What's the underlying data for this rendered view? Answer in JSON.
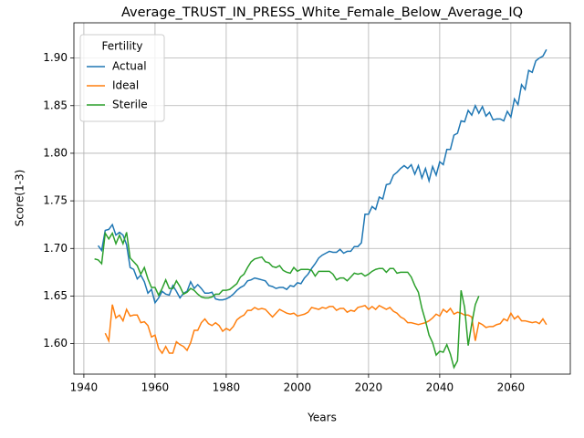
{
  "chart_data": {
    "type": "line",
    "title": "Average_TRUST_IN_PRESS_White_Female_Below_Average_IQ",
    "x_label": "Years",
    "y_label": "Score(1-3)",
    "legend_title": "Fertility",
    "legend_loc": "upper left",
    "grid": true,
    "xlim": [
      1937.2,
      2076.7
    ],
    "ylim": [
      1.568,
      1.937
    ],
    "xticks": [
      1940,
      1960,
      1980,
      2000,
      2020,
      2040,
      2060
    ],
    "yticks": [
      {
        "value": 1.6,
        "label": "1.60"
      },
      1.65,
      {
        "value": 1.7,
        "label": "1.70"
      },
      1.75,
      {
        "value": 1.8,
        "label": "1.80"
      },
      1.85,
      {
        "value": 1.9,
        "label": "1.90"
      }
    ],
    "x": [
      1943,
      1944,
      1945,
      1946,
      1947,
      1948,
      1949,
      1950,
      1951,
      1952,
      1953,
      1954,
      1955,
      1956,
      1957,
      1958,
      1959,
      1960,
      1961,
      1962,
      1963,
      1964,
      1965,
      1966,
      1967,
      1968,
      1969,
      1970,
      1971,
      1972,
      1973,
      1974,
      1975,
      1976,
      1977,
      1978,
      1979,
      1980,
      1981,
      1982,
      1983,
      1984,
      1985,
      1986,
      1987,
      1988,
      1989,
      1990,
      1991,
      1992,
      1993,
      1994,
      1995,
      1996,
      1997,
      1998,
      1999,
      2000,
      2001,
      2002,
      2003,
      2004,
      2005,
      2006,
      2007,
      2008,
      2009,
      2010,
      2011,
      2012,
      2013,
      2014,
      2015,
      2016,
      2017,
      2018,
      2019,
      2020,
      2021,
      2022,
      2023,
      2024,
      2025,
      2026,
      2027,
      2028,
      2029,
      2030,
      2031,
      2032,
      2033,
      2034,
      2035,
      2036,
      2037,
      2038,
      2039,
      2040,
      2041,
      2042,
      2043,
      2044,
      2045,
      2046,
      2047,
      2048,
      2049,
      2050,
      2051,
      2052,
      2053,
      2054,
      2055,
      2056,
      2057,
      2058,
      2059,
      2060,
      2061,
      2062,
      2063,
      2064,
      2065,
      2066,
      2067,
      2068,
      2069,
      2070
    ],
    "series": [
      {
        "name": "Actual",
        "color": "#1f77b4",
        "values": [
          null,
          1.703,
          1.698,
          1.719,
          1.72,
          1.725,
          1.714,
          1.717,
          1.714,
          1.704,
          1.68,
          1.678,
          1.668,
          1.672,
          1.665,
          1.653,
          1.657,
          1.643,
          1.648,
          1.655,
          1.652,
          1.651,
          1.661,
          1.655,
          1.648,
          1.653,
          1.655,
          1.665,
          1.658,
          1.662,
          1.658,
          1.653,
          1.653,
          1.654,
          1.647,
          1.646,
          1.646,
          1.647,
          1.649,
          1.652,
          1.656,
          1.659,
          1.661,
          1.666,
          1.667,
          1.669,
          1.668,
          1.667,
          1.666,
          1.661,
          1.66,
          1.658,
          1.659,
          1.659,
          1.657,
          1.661,
          1.66,
          1.664,
          1.663,
          1.669,
          1.673,
          1.679,
          1.684,
          1.69,
          1.693,
          1.695,
          1.697,
          1.696,
          1.696,
          1.699,
          1.695,
          1.697,
          1.697,
          1.702,
          1.702,
          1.706,
          1.736,
          1.736,
          1.744,
          1.741,
          1.754,
          1.752,
          1.767,
          1.768,
          1.777,
          1.78,
          1.784,
          1.787,
          1.784,
          1.788,
          1.778,
          1.787,
          1.774,
          1.784,
          1.771,
          1.786,
          1.777,
          1.791,
          1.788,
          1.804,
          1.804,
          1.819,
          1.821,
          1.834,
          1.833,
          1.845,
          1.84,
          1.85,
          1.842,
          1.849,
          1.839,
          1.843,
          1.835,
          1.836,
          1.836,
          1.834,
          1.844,
          1.838,
          1.857,
          1.851,
          1.872,
          1.867,
          1.887,
          1.885,
          1.897,
          1.9,
          1.902,
          1.909
        ]
      },
      {
        "name": "Ideal",
        "color": "#ff7f0e",
        "values": [
          null,
          null,
          null,
          1.611,
          1.603,
          1.641,
          1.627,
          1.63,
          1.624,
          1.636,
          1.629,
          1.63,
          1.63,
          1.622,
          1.623,
          1.619,
          1.607,
          1.609,
          1.595,
          1.59,
          1.597,
          1.59,
          1.59,
          1.602,
          1.599,
          1.597,
          1.593,
          1.601,
          1.614,
          1.614,
          1.622,
          1.626,
          1.621,
          1.619,
          1.622,
          1.619,
          1.613,
          1.616,
          1.614,
          1.618,
          1.625,
          1.628,
          1.63,
          1.635,
          1.635,
          1.638,
          1.636,
          1.637,
          1.636,
          1.632,
          1.628,
          1.632,
          1.636,
          1.634,
          1.632,
          1.631,
          1.632,
          1.629,
          1.63,
          1.631,
          1.633,
          1.638,
          1.637,
          1.636,
          1.638,
          1.637,
          1.639,
          1.639,
          1.635,
          1.637,
          1.637,
          1.633,
          1.635,
          1.634,
          1.638,
          1.639,
          1.64,
          1.636,
          1.639,
          1.636,
          1.64,
          1.638,
          1.636,
          1.638,
          1.634,
          1.632,
          1.628,
          1.626,
          1.622,
          1.622,
          1.621,
          1.62,
          1.621,
          1.622,
          1.624,
          1.627,
          1.631,
          1.629,
          1.636,
          1.633,
          1.637,
          1.631,
          1.633,
          1.632,
          1.63,
          1.63,
          1.628,
          1.603,
          1.622,
          1.62,
          1.617,
          1.618,
          1.618,
          1.62,
          1.621,
          1.626,
          1.624,
          1.632,
          1.626,
          1.629,
          1.624,
          1.624,
          1.623,
          1.622,
          1.623,
          1.621,
          1.626,
          1.62
        ]
      },
      {
        "name": "Sterile",
        "color": "#2ca02c",
        "values": [
          1.689,
          1.688,
          1.684,
          1.716,
          1.71,
          1.716,
          1.705,
          1.714,
          1.705,
          1.717,
          1.69,
          1.686,
          1.682,
          1.673,
          1.68,
          1.668,
          1.659,
          1.659,
          1.651,
          1.658,
          1.667,
          1.658,
          1.658,
          1.666,
          1.66,
          1.652,
          1.654,
          1.658,
          1.656,
          1.652,
          1.649,
          1.648,
          1.648,
          1.649,
          1.652,
          1.652,
          1.656,
          1.656,
          1.657,
          1.66,
          1.663,
          1.67,
          1.673,
          1.68,
          1.686,
          1.689,
          1.69,
          1.691,
          1.686,
          1.685,
          1.681,
          1.68,
          1.682,
          1.677,
          1.675,
          1.674,
          1.68,
          1.676,
          1.678,
          1.678,
          1.678,
          1.677,
          1.671,
          1.676,
          1.676,
          1.676,
          1.676,
          1.673,
          1.667,
          1.669,
          1.669,
          1.666,
          1.67,
          1.674,
          1.673,
          1.674,
          1.671,
          1.673,
          1.676,
          1.678,
          1.679,
          1.679,
          1.675,
          1.679,
          1.679,
          1.674,
          1.675,
          1.675,
          1.675,
          1.67,
          1.661,
          1.654,
          1.637,
          1.624,
          1.609,
          1.601,
          1.588,
          1.592,
          1.591,
          1.599,
          1.589,
          1.575,
          1.582,
          1.656,
          1.638,
          1.598,
          1.621,
          1.641,
          1.65,
          null,
          null,
          null,
          null,
          null,
          null,
          null,
          null,
          null,
          null,
          null,
          null,
          null,
          null,
          null,
          null,
          null,
          null,
          null
        ]
      }
    ]
  }
}
